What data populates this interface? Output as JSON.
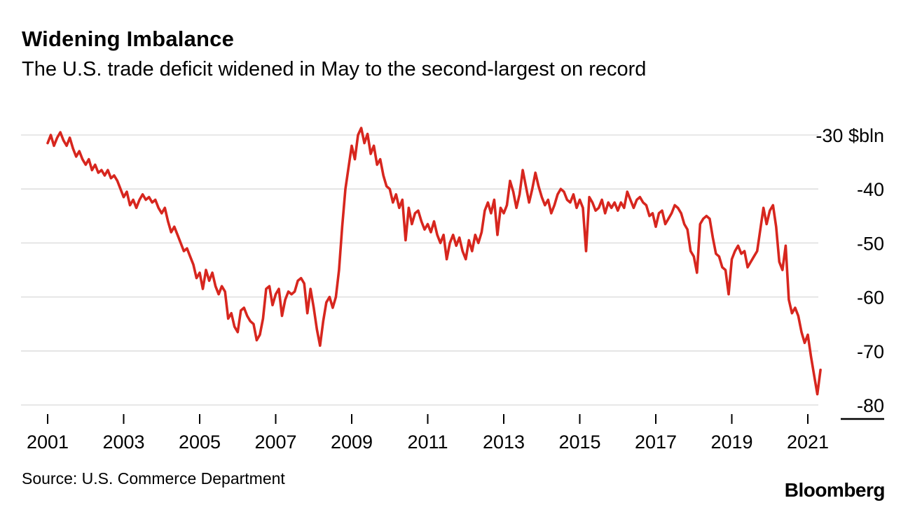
{
  "footer": {
    "source": "Source: U.S. Commerce Department",
    "brand": "Bloomberg"
  },
  "chart_data": {
    "type": "line",
    "title": "Widening Imbalance",
    "subtitle": "The U.S. trade deficit widened in May to the second-largest on record",
    "unit": "$bln",
    "frequency": "monthly",
    "x_start": "2001-01",
    "x_end": "2021-05",
    "x_ticks": [
      2001,
      2003,
      2005,
      2007,
      2009,
      2011,
      2013,
      2015,
      2017,
      2019,
      2021
    ],
    "y_ticks": [
      -30,
      -40,
      -50,
      -60,
      -70,
      -80
    ],
    "y_tick_labels": [
      "-30 $bln",
      "-40",
      "-50",
      "-60",
      "-70",
      "-80"
    ],
    "ylim": [
      -83,
      -27
    ],
    "grid": "horizontal",
    "legend": "none",
    "line_color": "#d7261e",
    "values": [
      -31.5,
      -30.0,
      -32.0,
      -30.5,
      -29.5,
      -31.0,
      -32.0,
      -30.5,
      -32.5,
      -34.0,
      -33.0,
      -34.5,
      -35.5,
      -34.5,
      -36.5,
      -35.5,
      -37.0,
      -36.5,
      -37.5,
      -36.5,
      -38.0,
      -37.5,
      -38.5,
      -40.0,
      -41.5,
      -40.5,
      -43.0,
      -42.0,
      -43.5,
      -42.0,
      -41.0,
      -42.0,
      -41.5,
      -42.5,
      -42.0,
      -43.5,
      -44.5,
      -43.5,
      -46.0,
      -48.0,
      -47.0,
      -48.5,
      -50.0,
      -51.5,
      -51.0,
      -52.5,
      -54.0,
      -56.5,
      -55.5,
      -58.5,
      -55.0,
      -57.0,
      -55.5,
      -58.0,
      -59.5,
      -58.0,
      -59.0,
      -64.0,
      -63.0,
      -65.5,
      -66.5,
      -62.5,
      -62.0,
      -63.5,
      -64.5,
      -65.0,
      -68.0,
      -67.0,
      -64.0,
      -58.5,
      -58.0,
      -61.5,
      -59.5,
      -58.5,
      -63.5,
      -60.5,
      -59.0,
      -59.5,
      -59.0,
      -57.0,
      -56.5,
      -57.5,
      -63.0,
      -58.5,
      -62.0,
      -66.0,
      -69.0,
      -64.5,
      -61.0,
      -60.0,
      -62.0,
      -60.0,
      -55.0,
      -47.0,
      -40.0,
      -36.0,
      -32.0,
      -34.5,
      -30.0,
      -28.7,
      -31.5,
      -29.8,
      -33.5,
      -32.0,
      -35.5,
      -34.5,
      -37.5,
      -39.5,
      -40.0,
      -42.5,
      -41.0,
      -43.5,
      -42.0,
      -49.5,
      -43.5,
      -46.5,
      -44.5,
      -44.0,
      -46.0,
      -47.5,
      -46.5,
      -48.0,
      -46.0,
      -48.5,
      -50.0,
      -48.5,
      -53.0,
      -50.0,
      -48.5,
      -50.5,
      -49.0,
      -51.5,
      -53.0,
      -49.5,
      -51.5,
      -48.5,
      -50.0,
      -48.0,
      -44.0,
      -42.5,
      -44.5,
      -42.0,
      -48.5,
      -43.5,
      -44.5,
      -43.0,
      -38.5,
      -40.5,
      -43.5,
      -41.0,
      -36.5,
      -39.5,
      -42.5,
      -40.0,
      -37.0,
      -39.5,
      -41.5,
      -43.0,
      -42.0,
      -44.5,
      -43.0,
      -41.0,
      -40.0,
      -40.5,
      -42.0,
      -42.5,
      -41.0,
      -43.5,
      -42.0,
      -43.5,
      -51.5,
      -41.5,
      -42.5,
      -44.0,
      -43.5,
      -42.0,
      -44.5,
      -42.5,
      -43.5,
      -42.5,
      -44.0,
      -42.5,
      -43.5,
      -40.5,
      -42.0,
      -43.5,
      -42.0,
      -41.5,
      -42.5,
      -43.0,
      -45.0,
      -44.5,
      -47.0,
      -44.5,
      -44.0,
      -46.5,
      -45.5,
      -44.5,
      -43.0,
      -43.5,
      -44.5,
      -46.5,
      -47.5,
      -51.5,
      -52.5,
      -55.5,
      -46.5,
      -45.5,
      -45.0,
      -45.5,
      -49.0,
      -52.0,
      -52.5,
      -54.5,
      -55.0,
      -59.5,
      -53.0,
      -51.5,
      -50.5,
      -52.0,
      -51.5,
      -54.5,
      -53.5,
      -52.5,
      -51.5,
      -47.5,
      -43.5,
      -46.5,
      -44.0,
      -43.0,
      -47.0,
      -53.5,
      -55.0,
      -50.5,
      -60.5,
      -63.0,
      -62.0,
      -63.5,
      -66.5,
      -68.5,
      -67.0,
      -71.0,
      -74.5,
      -78.0,
      -73.5
    ]
  }
}
